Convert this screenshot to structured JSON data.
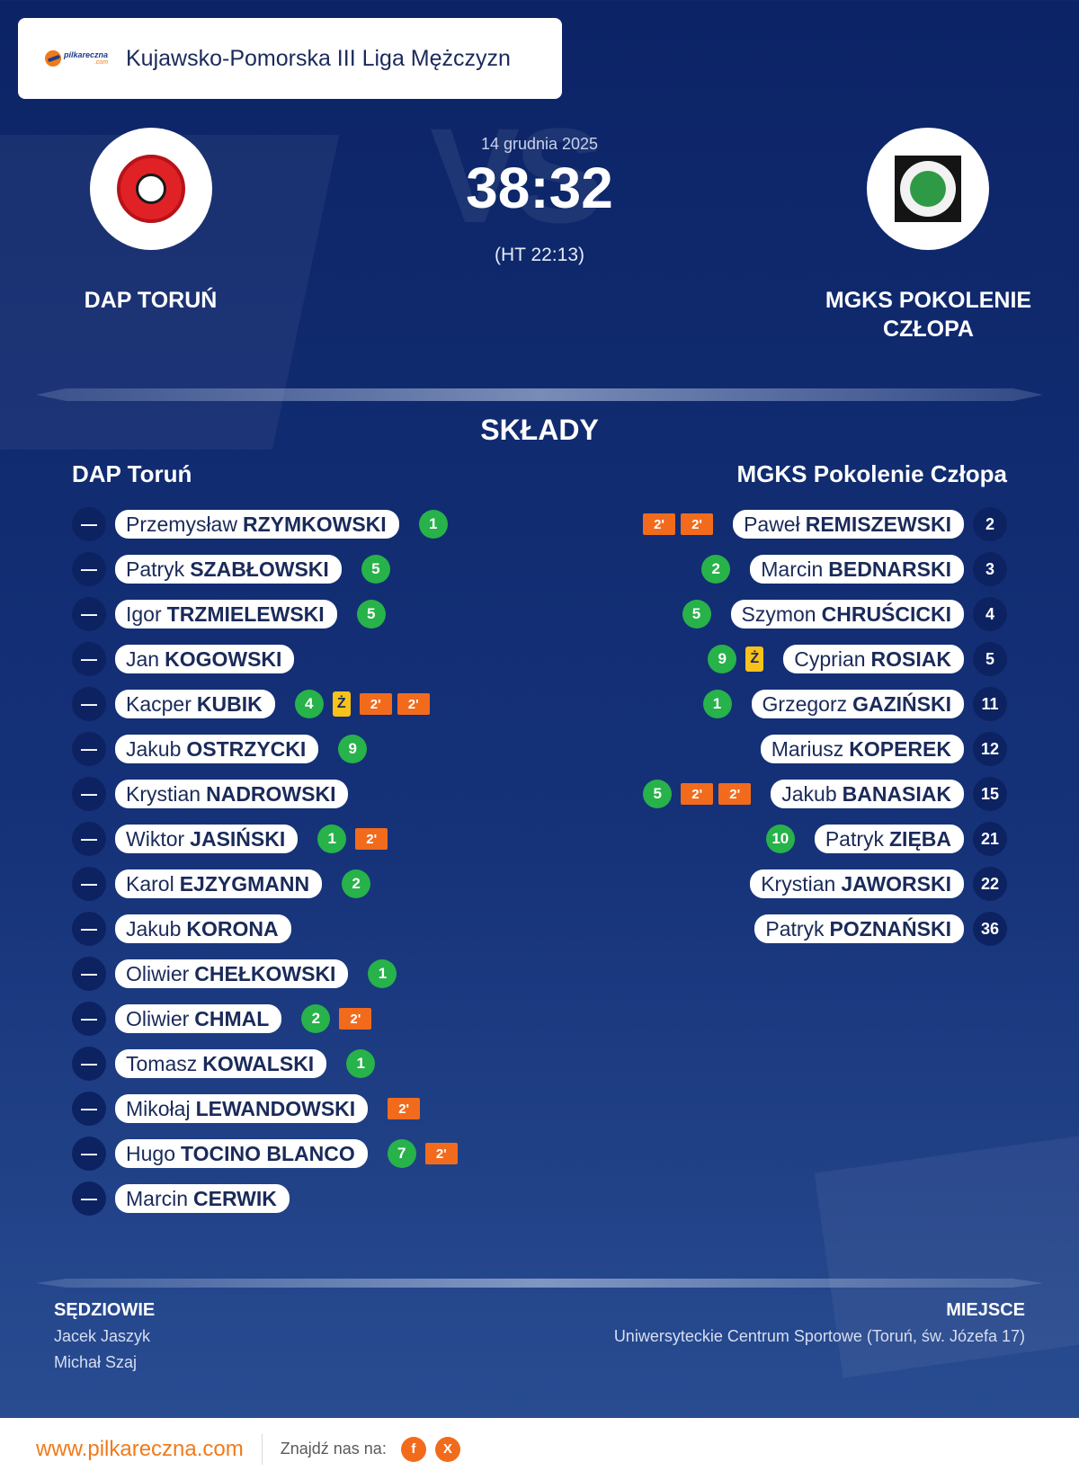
{
  "league": {
    "logo_text": "pilkareczna",
    "logo_sub": ".com",
    "name": "Kujawsko-Pomorska III Liga Mężczyzn"
  },
  "match": {
    "date": "14 grudnia 2025",
    "score": "38:32",
    "halftime": "(HT 22:13)",
    "vs_watermark": "VS",
    "home_team": "DAP TORUŃ",
    "away_team": "MGKS POKOLENIE CZŁOPA"
  },
  "lineups_title": "SKŁADY",
  "home": {
    "name": "DAP Toruń",
    "players": [
      {
        "num": "—",
        "first": "Przemysław",
        "last": "RZYMKOWSKI",
        "stats": [
          {
            "type": "goal",
            "v": "1"
          }
        ]
      },
      {
        "num": "—",
        "first": "Patryk",
        "last": "SZABŁOWSKI",
        "stats": [
          {
            "type": "goal",
            "v": "5"
          }
        ]
      },
      {
        "num": "—",
        "first": "Igor",
        "last": "TRZMIELEWSKI",
        "stats": [
          {
            "type": "goal",
            "v": "5"
          }
        ]
      },
      {
        "num": "—",
        "first": "Jan",
        "last": "KOGOWSKI",
        "stats": []
      },
      {
        "num": "—",
        "first": "Kacper",
        "last": "KUBIK",
        "stats": [
          {
            "type": "goal",
            "v": "4"
          },
          {
            "type": "yellow",
            "v": "Ż"
          },
          {
            "type": "susp",
            "v": "2'"
          },
          {
            "type": "susp",
            "v": "2'"
          }
        ]
      },
      {
        "num": "—",
        "first": "Jakub",
        "last": "OSTRZYCKI",
        "stats": [
          {
            "type": "goal",
            "v": "9"
          }
        ]
      },
      {
        "num": "—",
        "first": "Krystian",
        "last": "NADROWSKI",
        "stats": []
      },
      {
        "num": "—",
        "first": "Wiktor",
        "last": "JASIŃSKI",
        "stats": [
          {
            "type": "goal",
            "v": "1"
          },
          {
            "type": "susp",
            "v": "2'"
          }
        ]
      },
      {
        "num": "—",
        "first": "Karol",
        "last": "EJZYGMANN",
        "stats": [
          {
            "type": "goal",
            "v": "2"
          }
        ]
      },
      {
        "num": "—",
        "first": "Jakub",
        "last": "KORONA",
        "stats": []
      },
      {
        "num": "—",
        "first": "Oliwier",
        "last": "CHEŁKOWSKI",
        "stats": [
          {
            "type": "goal",
            "v": "1"
          }
        ]
      },
      {
        "num": "—",
        "first": "Oliwier",
        "last": "CHMAL",
        "stats": [
          {
            "type": "goal",
            "v": "2"
          },
          {
            "type": "susp",
            "v": "2'"
          }
        ]
      },
      {
        "num": "—",
        "first": "Tomasz",
        "last": "KOWALSKI",
        "stats": [
          {
            "type": "goal",
            "v": "1"
          }
        ]
      },
      {
        "num": "—",
        "first": "Mikołaj",
        "last": "LEWANDOWSKI",
        "stats": [
          {
            "type": "susp",
            "v": "2'"
          }
        ]
      },
      {
        "num": "—",
        "first": "Hugo",
        "last": "TOCINO BLANCO",
        "stats": [
          {
            "type": "goal",
            "v": "7"
          },
          {
            "type": "susp",
            "v": "2'"
          }
        ]
      },
      {
        "num": "—",
        "first": "Marcin",
        "last": "CERWIK",
        "stats": []
      }
    ]
  },
  "away": {
    "name": "MGKS Pokolenie Człopa",
    "players": [
      {
        "num": "2",
        "first": "Paweł",
        "last": "REMISZEWSKI",
        "stats": [
          {
            "type": "susp",
            "v": "2'"
          },
          {
            "type": "susp",
            "v": "2'"
          }
        ]
      },
      {
        "num": "3",
        "first": "Marcin",
        "last": "BEDNARSKI",
        "stats": [
          {
            "type": "goal",
            "v": "2"
          }
        ]
      },
      {
        "num": "4",
        "first": "Szymon",
        "last": "CHRUŚCICKI",
        "stats": [
          {
            "type": "goal",
            "v": "5"
          }
        ]
      },
      {
        "num": "5",
        "first": "Cyprian",
        "last": "ROSIAK",
        "stats": [
          {
            "type": "goal",
            "v": "9"
          },
          {
            "type": "yellow",
            "v": "Ż"
          }
        ]
      },
      {
        "num": "11",
        "first": "Grzegorz",
        "last": "GAZIŃSKI",
        "stats": [
          {
            "type": "goal",
            "v": "1"
          }
        ]
      },
      {
        "num": "12",
        "first": "Mariusz",
        "last": "KOPEREK",
        "stats": []
      },
      {
        "num": "15",
        "first": "Jakub",
        "last": "BANASIAK",
        "stats": [
          {
            "type": "goal",
            "v": "5"
          },
          {
            "type": "susp",
            "v": "2'"
          },
          {
            "type": "susp",
            "v": "2'"
          }
        ]
      },
      {
        "num": "21",
        "first": "Patryk",
        "last": "ZIĘBA",
        "stats": [
          {
            "type": "goal",
            "v": "10"
          }
        ]
      },
      {
        "num": "22",
        "first": "Krystian",
        "last": "JAWORSKI",
        "stats": []
      },
      {
        "num": "36",
        "first": "Patryk",
        "last": "POZNAŃSKI",
        "stats": []
      }
    ]
  },
  "referees": {
    "label": "SĘDZIOWIE",
    "names": [
      "Jacek Jaszyk",
      "Michał Szaj"
    ]
  },
  "venue": {
    "label": "MIEJSCE",
    "name": "Uniwersyteckie Centrum Sportowe (Toruń, św. Józefa 17)"
  },
  "footer": {
    "site": "www.pilkareczna.com",
    "find_us": "Znajdź nas na:",
    "social": [
      {
        "icon": "facebook-icon",
        "glyph": "f"
      },
      {
        "icon": "x-icon",
        "glyph": "X"
      }
    ]
  },
  "colors": {
    "goal": "#27b24a",
    "yellow_card": "#f7c21a",
    "suspension": "#f26b1d",
    "accent": "#f07a1a"
  }
}
